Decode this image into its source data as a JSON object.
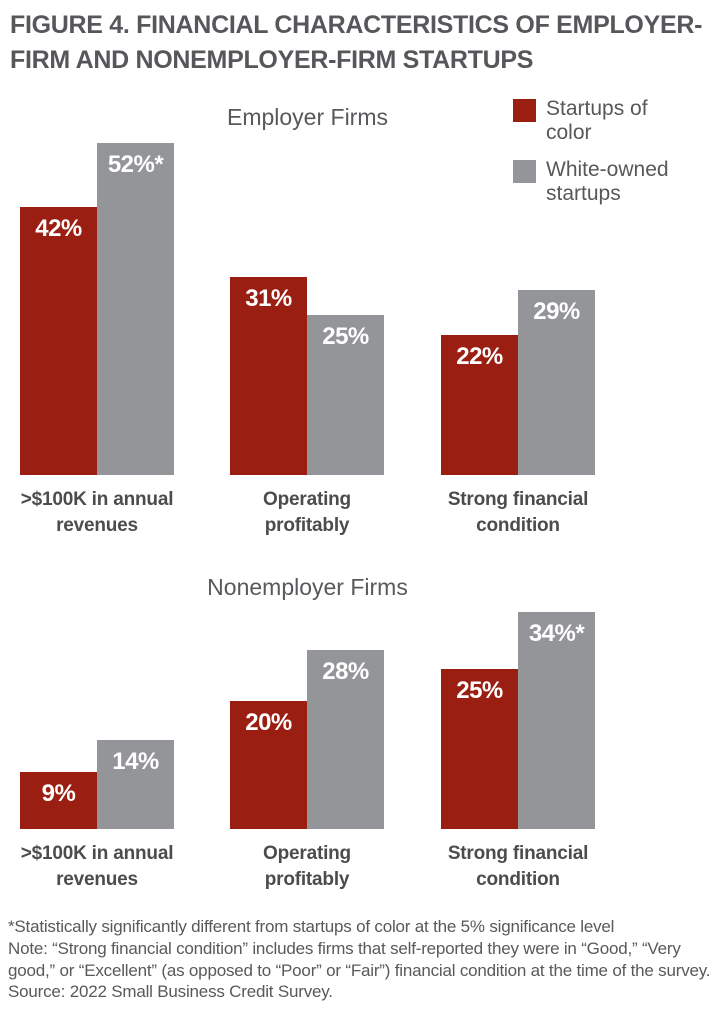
{
  "title_lines": [
    "FIGURE 4. FINANCIAL CHARACTERISTICS OF EMPLOYER-",
    "FIRM AND NONEMPLOYER-FIRM STARTUPS"
  ],
  "legend": [
    {
      "label": "Startups of color",
      "color": "#9a1f12",
      "swatch": "red-square-swatch"
    },
    {
      "label": "White-owned startups",
      "color": "#939598",
      "swatch": "gray-square-swatch"
    }
  ],
  "chart_data": [
    {
      "type": "bar",
      "title": "Employer Firms",
      "categories": [
        ">$100K in annual revenues",
        "Operating profitably",
        "Strong financial condition"
      ],
      "series": [
        {
          "name": "Startups of color",
          "color": "#9a1f12",
          "values": [
            42,
            31,
            22
          ],
          "labels": [
            "42%",
            "31%",
            "22%"
          ]
        },
        {
          "name": "White-owned startups",
          "color": "#939598",
          "values": [
            52,
            25,
            29
          ],
          "labels": [
            "52%*",
            "25%",
            "29%"
          ]
        }
      ],
      "value_unit": "%",
      "ylim": [
        0,
        55
      ],
      "grid": false,
      "axes_shown": false,
      "legend_position": "top-right",
      "bar_label_position": "inside-top"
    },
    {
      "type": "bar",
      "title": "Nonemployer Firms",
      "categories": [
        ">$100K in annual revenues",
        "Operating profitably",
        "Strong financial condition"
      ],
      "series": [
        {
          "name": "Startups of color",
          "color": "#9a1f12",
          "values": [
            9,
            20,
            25
          ],
          "labels": [
            "9%",
            "20%",
            "25%"
          ]
        },
        {
          "name": "White-owned startups",
          "color": "#939598",
          "values": [
            14,
            28,
            34
          ],
          "labels": [
            "14%",
            "28%",
            "34%*"
          ]
        }
      ],
      "value_unit": "%",
      "ylim": [
        0,
        55
      ],
      "grid": false,
      "axes_shown": false,
      "legend_position": "shared-top-right",
      "bar_label_position": "inside-top"
    }
  ],
  "notes": [
    "*Statistically significantly different from startups of color at the 5% significance level",
    "Note: “Strong financial condition” includes firms that self-reported they were in “Good,” “Very good,” or “Excellent” (as opposed to “Poor” or “Fair”) financial condition at the time of the survey.",
    "Source: 2022 Small Business Credit Survey."
  ]
}
